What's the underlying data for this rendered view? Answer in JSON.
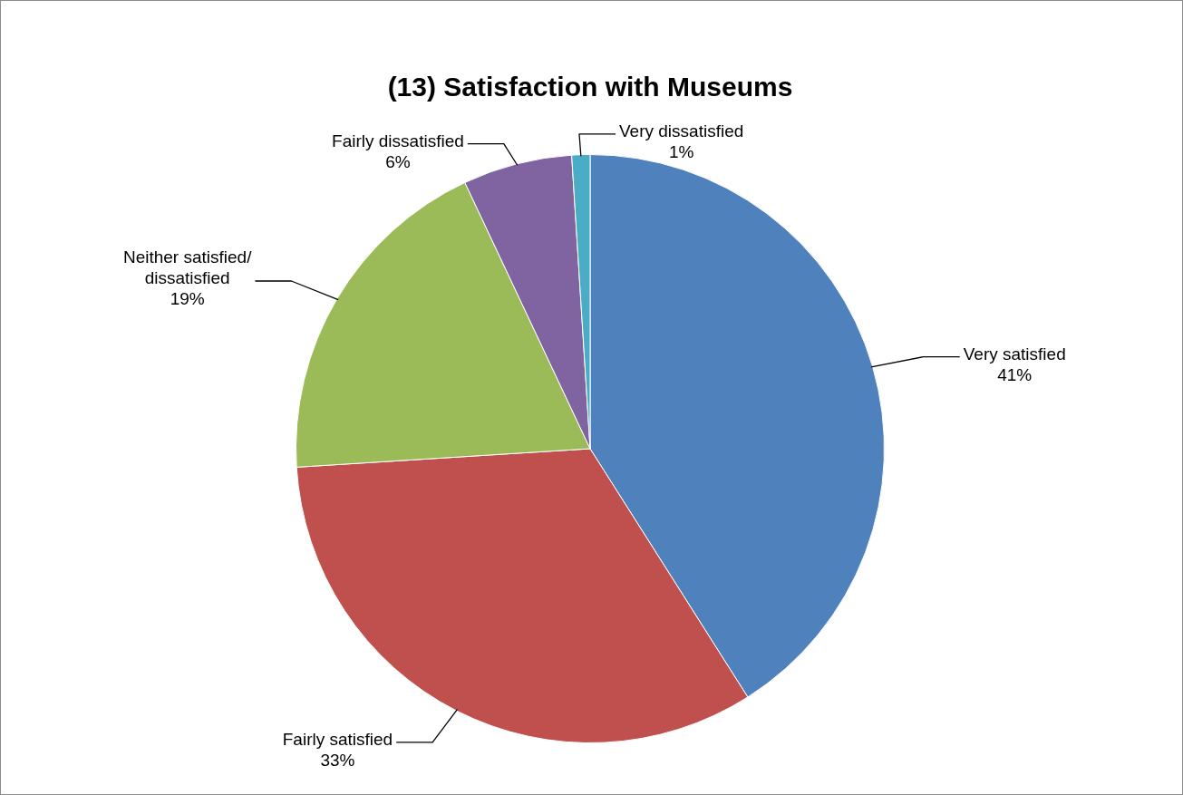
{
  "chart_data": {
    "type": "pie",
    "title": "(13) Satisfaction with Museums",
    "categories": [
      "Very satisfied",
      "Fairly satisfied",
      "Neither satisfied/ dissatisfied",
      "Fairly dissatisfied",
      "Very dissatisfied"
    ],
    "values": [
      41,
      33,
      19,
      6,
      1
    ],
    "value_labels": [
      "41%",
      "33%",
      "19%",
      "6%",
      "1%"
    ],
    "colors": [
      "#4f81bd",
      "#c0504d",
      "#9bbb59",
      "#8064a2",
      "#4bacc6"
    ],
    "legend": false
  }
}
